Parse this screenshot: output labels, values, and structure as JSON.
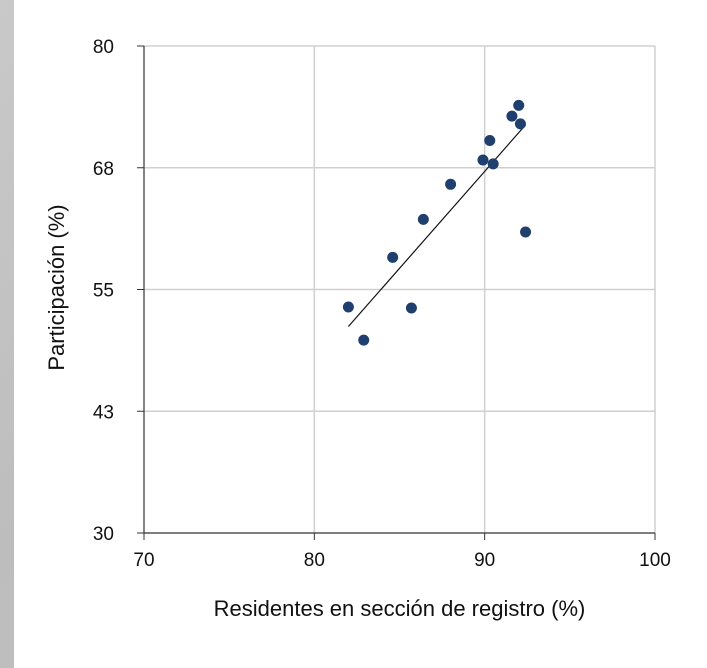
{
  "chart_data": {
    "type": "scatter",
    "xlabel": "Residentes en sección de registro (%)",
    "ylabel": "Participación (%)",
    "xlim": [
      70,
      100
    ],
    "ylim": [
      30,
      80
    ],
    "xticks": [
      "70",
      "80",
      "90",
      "100"
    ],
    "yticks": [
      "30",
      "43",
      "55",
      "68",
      "80"
    ],
    "grid": true,
    "point_color": "#1f3f6e",
    "points": [
      {
        "x": 82.0,
        "y": 53.2
      },
      {
        "x": 82.9,
        "y": 49.8
      },
      {
        "x": 84.6,
        "y": 58.3
      },
      {
        "x": 85.7,
        "y": 53.1
      },
      {
        "x": 86.4,
        "y": 62.2
      },
      {
        "x": 88.0,
        "y": 65.8
      },
      {
        "x": 89.9,
        "y": 68.3
      },
      {
        "x": 90.3,
        "y": 70.3
      },
      {
        "x": 90.5,
        "y": 67.9
      },
      {
        "x": 91.6,
        "y": 72.8
      },
      {
        "x": 92.0,
        "y": 73.9
      },
      {
        "x": 92.1,
        "y": 72.0
      },
      {
        "x": 92.4,
        "y": 60.9
      }
    ],
    "trendline": {
      "x": [
        82.0,
        92.4
      ],
      "y": [
        51.2,
        71.9
      ]
    }
  }
}
